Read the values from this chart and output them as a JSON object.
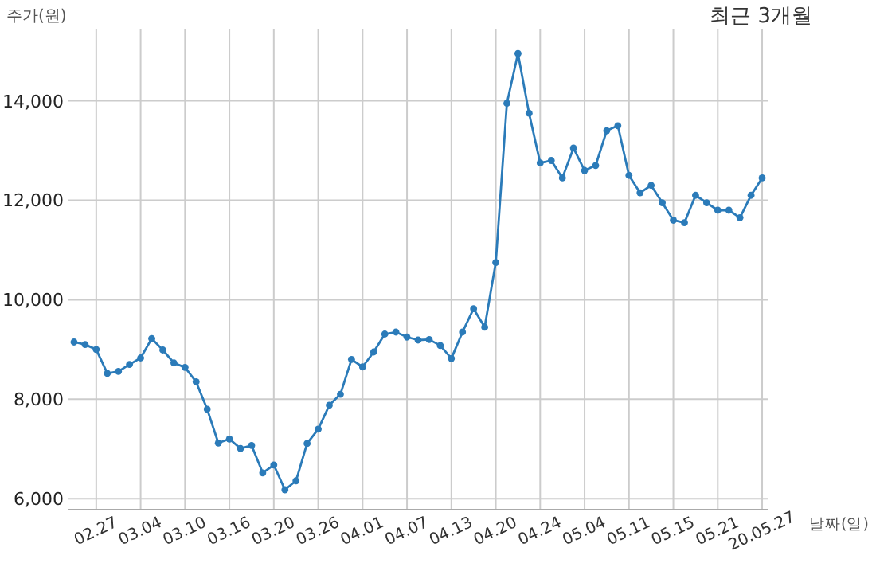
{
  "chart_data": {
    "type": "line",
    "title": "최근 3개월",
    "xlabel": "날짜(일)",
    "ylabel": "주가(원)",
    "categories": [
      null,
      null,
      "02.27",
      null,
      null,
      null,
      "03.04",
      null,
      null,
      null,
      "03.10",
      null,
      null,
      null,
      "03.16",
      null,
      null,
      null,
      "03.20",
      null,
      null,
      null,
      "03.26",
      null,
      null,
      null,
      "04.01",
      null,
      null,
      null,
      "04.07",
      null,
      null,
      null,
      "04.13",
      null,
      null,
      null,
      "04.20",
      null,
      null,
      null,
      "04.24",
      null,
      null,
      null,
      "05.04",
      null,
      null,
      null,
      "05.11",
      null,
      null,
      null,
      "05.15",
      null,
      null,
      null,
      "05.21",
      null,
      null,
      null,
      "20.05.27"
    ],
    "series": [
      {
        "color": "#2b7bb9",
        "values": [
          9150,
          9100,
          9000,
          8520,
          8560,
          8700,
          8830,
          9220,
          8990,
          8730,
          8640,
          8350,
          7800,
          7120,
          7200,
          7010,
          7070,
          6520,
          6680,
          6180,
          6360,
          7110,
          7400,
          7880,
          8100,
          8800,
          8650,
          8950,
          9310,
          9350,
          9250,
          9190,
          9200,
          9080,
          8820,
          9350,
          9820,
          9450,
          10750,
          13950,
          14950,
          13750,
          12750,
          12800,
          12450,
          13050,
          12600,
          12700,
          13400,
          13500,
          12500,
          12150,
          12300,
          11950,
          11600,
          11550,
          12100,
          11950,
          11800,
          11800,
          11650,
          12100,
          12450
        ]
      }
    ],
    "ylim": [
      5780,
      15450
    ],
    "yticks": [
      {
        "value": 6000,
        "label": "6,000"
      },
      {
        "value": 8000,
        "label": "8,000"
      },
      {
        "value": 10000,
        "label": "10,000"
      },
      {
        "value": 12000,
        "label": "12,000"
      },
      {
        "value": 14000,
        "label": "14,000"
      }
    ],
    "grid": true,
    "marker": "circle"
  }
}
